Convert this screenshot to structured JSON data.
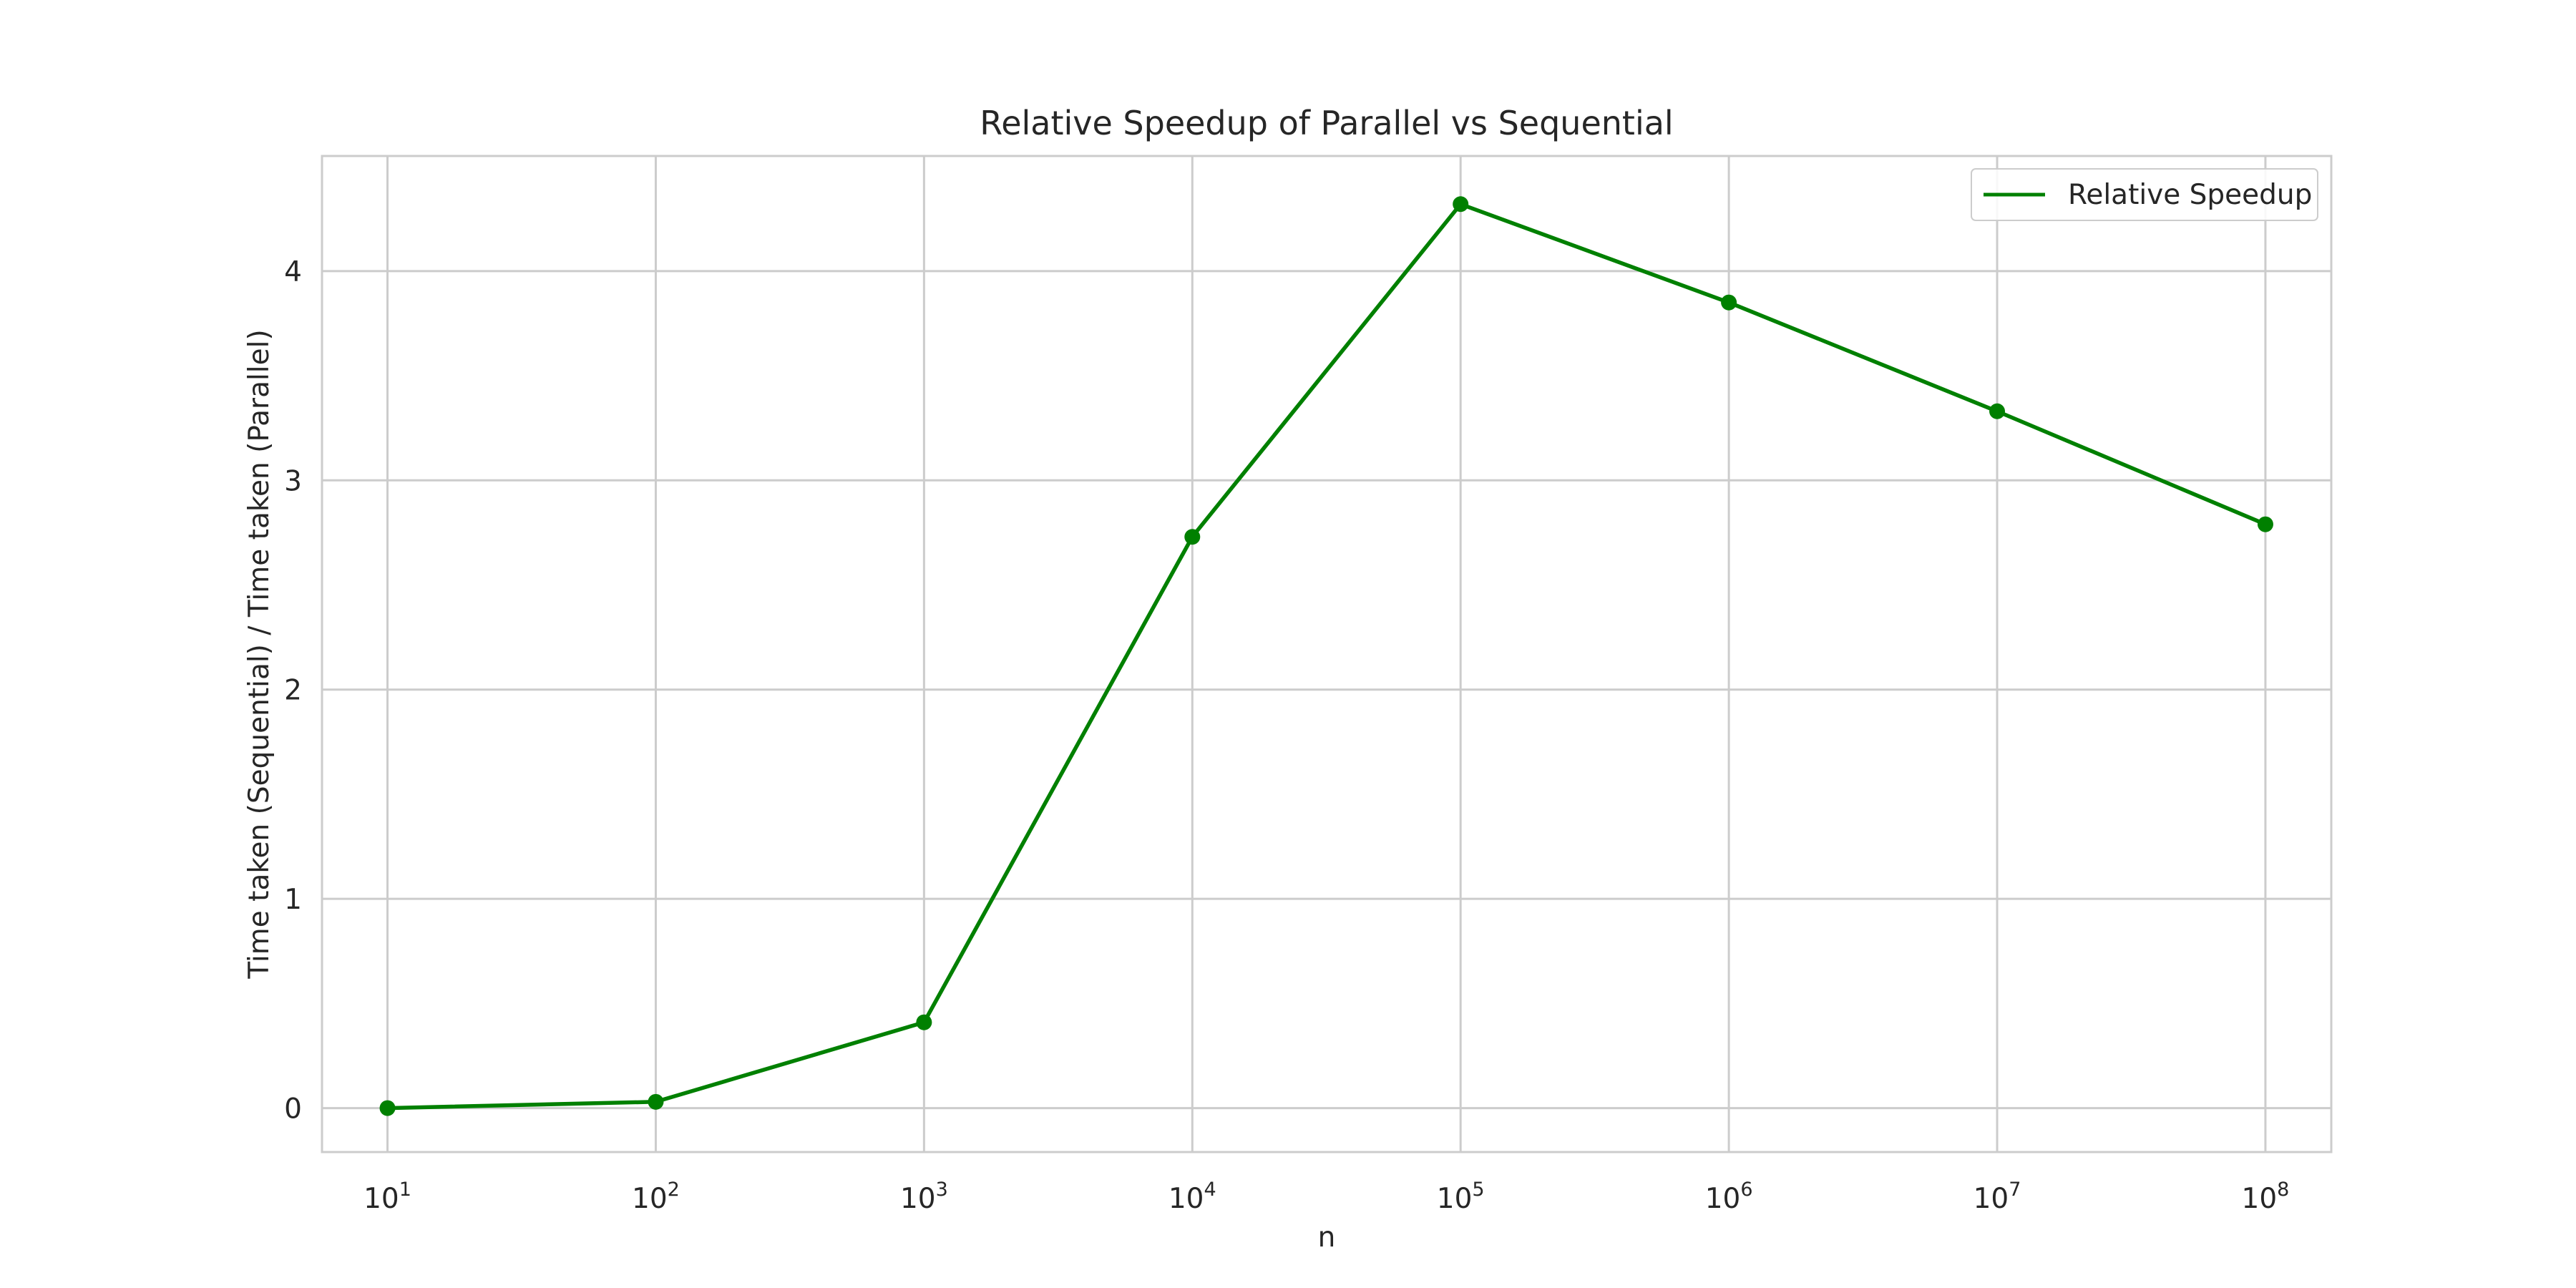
{
  "chart_data": {
    "type": "line",
    "title": "Relative Speedup of Parallel vs Sequential",
    "xlabel": "n",
    "ylabel": "Time taken (Sequential) / Time taken (Parallel)",
    "x_scale": "log",
    "x": [
      10,
      100,
      1000,
      10000,
      100000,
      1000000,
      10000000,
      100000000
    ],
    "x_ticks": [
      {
        "base": "10",
        "exp": "1"
      },
      {
        "base": "10",
        "exp": "2"
      },
      {
        "base": "10",
        "exp": "3"
      },
      {
        "base": "10",
        "exp": "4"
      },
      {
        "base": "10",
        "exp": "5"
      },
      {
        "base": "10",
        "exp": "6"
      },
      {
        "base": "10",
        "exp": "7"
      },
      {
        "base": "10",
        "exp": "8"
      }
    ],
    "y_ticks": [
      "0",
      "1",
      "2",
      "3",
      "4"
    ],
    "xlim": [
      5.7,
      176000000
    ],
    "ylim": [
      -0.21,
      4.55
    ],
    "grid": true,
    "legend_position": "top-right",
    "series": [
      {
        "name": "Relative Speedup",
        "color": "#008000",
        "marker": "circle",
        "values": [
          0.0,
          0.03,
          0.41,
          2.73,
          4.32,
          3.85,
          3.33,
          2.79
        ]
      }
    ]
  }
}
